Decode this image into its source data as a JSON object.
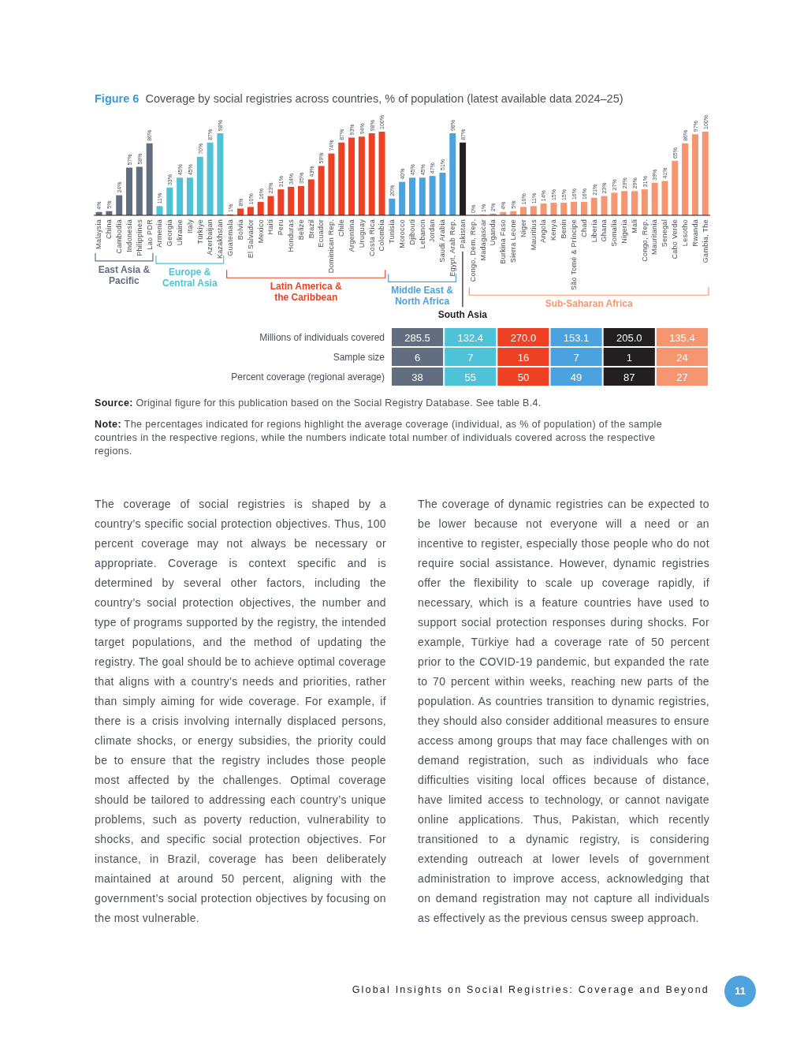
{
  "chart_data": [
    {
      "type": "bar",
      "title": "Figure 6",
      "subtitle": "Coverage by social registries across countries, % of population (latest available data 2024–25)",
      "tick_labels": "x",
      "categories": [
        "Malaysia",
        "China",
        "Cambodia",
        "Indonesia",
        "Philippines",
        "Lao PDR",
        "Armenia",
        "Georgia",
        "Ukraine",
        "Italy",
        "Türkiye",
        "Azerbaijan",
        "Kazakhstan",
        "Guatemala",
        "Bolvia",
        "El Salvador",
        "Mexico",
        "Haiti",
        "Peru",
        "Honduras",
        "Belize",
        "Brazil",
        "Ecuador",
        "Dominican Rep.",
        "Chile",
        "Argentina",
        "Uruguay",
        "Costa Rica",
        "Colombia",
        "Tunisia",
        "Morocco",
        "Djibouti",
        "Lebanon",
        "Jordan",
        "Saudi Arabia",
        "Egypt, Arab Rep.",
        "Pakistan",
        "Congo, Dem. Rep.",
        "Madagascar",
        "Uganda",
        "Burkina Faso",
        "Sierra Leone",
        "Niger",
        "Mauritius",
        "Angola",
        "Kenya",
        "Benin",
        "São Tomé & Príncipe",
        "Chad",
        "Liberia",
        "Ghana",
        "Somalia",
        "Nigeria",
        "Mali",
        "Congo, Rep.",
        "Mauritania",
        "Senegal",
        "Cabo Verde",
        "Lesotho",
        "Rwanda",
        "Gambia, The"
      ],
      "series": [
        {
          "name": "East Asia & Pacific",
          "color": "#626e80",
          "values": [
            4,
            5,
            24,
            57,
            58,
            86,
            null,
            null,
            null,
            null,
            null,
            null,
            null,
            null,
            null,
            null,
            null,
            null,
            null,
            null,
            null,
            null,
            null,
            null,
            null,
            null,
            null,
            null,
            null,
            null,
            null,
            null,
            null,
            null,
            null,
            null,
            null,
            null,
            null,
            null,
            null,
            null,
            null,
            null,
            null,
            null,
            null,
            null,
            null,
            null,
            null,
            null,
            null,
            null,
            null,
            null,
            null,
            null,
            null,
            null,
            null
          ],
          "value_labels": [
            "4%",
            "5%",
            "24%",
            "57%",
            "58%",
            "86%",
            null,
            null,
            null,
            null,
            null,
            null,
            null,
            null,
            null,
            null,
            null,
            null,
            null,
            null,
            null,
            null,
            null,
            null,
            null,
            null,
            null,
            null,
            null,
            null,
            null,
            null,
            null,
            null,
            null,
            null,
            null,
            null,
            null,
            null,
            null,
            null,
            null,
            null,
            null,
            null,
            null,
            null,
            null,
            null,
            null,
            null,
            null,
            null,
            null,
            null,
            null,
            null,
            null,
            null,
            null
          ]
        },
        {
          "name": "Europe & Central Asia",
          "color": "#4ec3d8",
          "values": [
            null,
            null,
            null,
            null,
            null,
            null,
            11,
            33,
            45,
            45,
            70,
            87,
            98,
            null,
            null,
            null,
            null,
            null,
            null,
            null,
            null,
            null,
            null,
            null,
            null,
            null,
            null,
            null,
            null,
            null,
            null,
            null,
            null,
            null,
            null,
            null,
            null,
            null,
            null,
            null,
            null,
            null,
            null,
            null,
            null,
            null,
            null,
            null,
            null,
            null,
            null,
            null,
            null,
            null,
            null,
            null,
            null,
            null,
            null,
            null,
            null
          ],
          "value_labels": [
            null,
            null,
            null,
            null,
            null,
            null,
            "11%",
            "33%",
            "45%",
            "45%",
            "70%",
            "87%",
            "98%",
            null,
            null,
            null,
            null,
            null,
            null,
            null,
            null,
            null,
            null,
            null,
            null,
            null,
            null,
            null,
            null,
            null,
            null,
            null,
            null,
            null,
            null,
            null,
            null,
            null,
            null,
            null,
            null,
            null,
            null,
            null,
            null,
            null,
            null,
            null,
            null,
            null,
            null,
            null,
            null,
            null,
            null,
            null,
            null,
            null,
            null,
            null,
            null
          ]
        },
        {
          "name": "Latin America & the Caribbean",
          "color": "#ee4124",
          "values": [
            null,
            null,
            null,
            null,
            null,
            null,
            null,
            null,
            null,
            null,
            null,
            null,
            null,
            1,
            8,
            10,
            16,
            23,
            31,
            34,
            35,
            43,
            59,
            74,
            87,
            93,
            94,
            98,
            100,
            null,
            null,
            null,
            null,
            null,
            null,
            null,
            null,
            null,
            null,
            null,
            null,
            null,
            null,
            null,
            null,
            null,
            null,
            null,
            null,
            null,
            null,
            null,
            null,
            null,
            null,
            null,
            null,
            null,
            null,
            null,
            null
          ],
          "value_labels": [
            null,
            null,
            null,
            null,
            null,
            null,
            null,
            null,
            null,
            null,
            null,
            null,
            null,
            "1%",
            "8%",
            "10%",
            "16%",
            "23%",
            "31%",
            "34%",
            "35%",
            "43%",
            "59%",
            "74%",
            "87%",
            "93%",
            "94%",
            "98%",
            "100%",
            null,
            null,
            null,
            null,
            null,
            null,
            null,
            null,
            null,
            null,
            null,
            null,
            null,
            null,
            null,
            null,
            null,
            null,
            null,
            null,
            null,
            null,
            null,
            null,
            null,
            null,
            null,
            null,
            null,
            null,
            null,
            null
          ]
        },
        {
          "name": "Middle East & North Africa",
          "color": "#4aa3df",
          "values": [
            null,
            null,
            null,
            null,
            null,
            null,
            null,
            null,
            null,
            null,
            null,
            null,
            null,
            null,
            null,
            null,
            null,
            null,
            null,
            null,
            null,
            null,
            null,
            null,
            null,
            null,
            null,
            null,
            null,
            20,
            40,
            45,
            45,
            47,
            51,
            98,
            null,
            null,
            null,
            null,
            null,
            null,
            null,
            null,
            null,
            null,
            null,
            null,
            null,
            null,
            null,
            null,
            null,
            null,
            null,
            null,
            null,
            null,
            null,
            null,
            null
          ],
          "value_labels": [
            null,
            null,
            null,
            null,
            null,
            null,
            null,
            null,
            null,
            null,
            null,
            null,
            null,
            null,
            null,
            null,
            null,
            null,
            null,
            null,
            null,
            null,
            null,
            null,
            null,
            null,
            null,
            null,
            null,
            "20%",
            "40%",
            "45%",
            "45%",
            "47%",
            "51%",
            "98%",
            null,
            null,
            null,
            null,
            null,
            null,
            null,
            null,
            null,
            null,
            null,
            null,
            null,
            null,
            null,
            null,
            null,
            null,
            null,
            null,
            null,
            null,
            null,
            null,
            null
          ]
        },
        {
          "name": "South Asia",
          "color": "#231f20",
          "values": [
            null,
            null,
            null,
            null,
            null,
            null,
            null,
            null,
            null,
            null,
            null,
            null,
            null,
            null,
            null,
            null,
            null,
            null,
            null,
            null,
            null,
            null,
            null,
            null,
            null,
            null,
            null,
            null,
            null,
            null,
            null,
            null,
            null,
            null,
            null,
            null,
            87,
            null,
            null,
            null,
            null,
            null,
            null,
            null,
            null,
            null,
            null,
            null,
            null,
            null,
            null,
            null,
            null,
            null,
            null,
            null,
            null,
            null,
            null,
            null,
            null
          ],
          "value_labels": [
            null,
            null,
            null,
            null,
            null,
            null,
            null,
            null,
            null,
            null,
            null,
            null,
            null,
            null,
            null,
            null,
            null,
            null,
            null,
            null,
            null,
            null,
            null,
            null,
            null,
            null,
            null,
            null,
            null,
            null,
            null,
            null,
            null,
            null,
            null,
            null,
            "87%",
            null,
            null,
            null,
            null,
            null,
            null,
            null,
            null,
            null,
            null,
            null,
            null,
            null,
            null,
            null,
            null,
            null,
            null,
            null,
            null,
            null,
            null,
            null,
            null
          ]
        },
        {
          "name": "Sub-Saharan Africa",
          "color": "#f59670",
          "values": [
            null,
            null,
            null,
            null,
            null,
            null,
            null,
            null,
            null,
            null,
            null,
            null,
            null,
            null,
            null,
            null,
            null,
            null,
            null,
            null,
            null,
            null,
            null,
            null,
            null,
            null,
            null,
            null,
            null,
            null,
            null,
            null,
            null,
            null,
            null,
            null,
            null,
            0,
            1,
            2,
            4,
            5,
            10,
            11,
            14,
            15,
            15,
            16,
            16,
            21,
            23,
            27,
            29,
            29,
            31,
            39,
            41,
            65,
            86,
            97,
            100
          ],
          "value_labels": [
            null,
            null,
            null,
            null,
            null,
            null,
            null,
            null,
            null,
            null,
            null,
            null,
            null,
            null,
            null,
            null,
            null,
            null,
            null,
            null,
            null,
            null,
            null,
            null,
            null,
            null,
            null,
            null,
            null,
            null,
            null,
            null,
            null,
            null,
            null,
            null,
            null,
            "0%",
            "1%",
            "2%",
            "4%",
            "5%",
            "10%",
            "11%",
            "14%",
            "15%",
            "15%",
            "16%",
            "16%",
            "21%",
            "23%",
            "27%",
            "29%",
            "29%",
            "31%",
            "39%",
            "41%",
            "65%",
            "86%",
            "97%",
            "100%"
          ]
        }
      ]
    },
    {
      "type": "heatmap",
      "tick_labels": "y",
      "categories": [
        null,
        null,
        null,
        null,
        null,
        null
      ],
      "y_categories": [
        "Millions of individuals covered",
        "Sample size",
        "Percent coverage (regional average)"
      ],
      "cells": [
        [
          285.5,
          132.4,
          270.0,
          153.1,
          205.0,
          135.4
        ],
        [
          6,
          7,
          16,
          7,
          1,
          24
        ],
        [
          38,
          55,
          50,
          49,
          87,
          27
        ]
      ],
      "cell_labels": [
        [
          "285.5",
          "132.4",
          "270.0",
          "153.1",
          "205.0",
          "135.4"
        ],
        [
          "6",
          "7",
          "16",
          "7",
          "1",
          "24"
        ],
        [
          "38",
          "55",
          "50",
          "49",
          "87",
          "27"
        ]
      ],
      "colors": [
        "#626e80",
        "#4ec3d8",
        "#ee4124",
        "#4aa3df",
        "#231f20",
        "#f59670"
      ],
      "annotations": [
        "Source: Original figure for this publication based on the Social Registry Database. See table B.4.",
        "Note: The percentages indicated for regions highlight the average coverage (individual, as % of population) of the sample countries in the respective regions, while the numbers indicate total number of individuals covered across the respective regions.",
        "The coverage of social registries is shaped by a country’s specific social protection objectives. Thus, 100 percent coverage may not always be necessary or appropriate. Coverage is context specific and is determined by several other factors, including the country’s social protection objectives, the number and type of programs supported by the registry, the intended target populations, and the method of updating the registry. The goal should be to achieve optimal coverage that aligns with a country’s needs and priorities, rather than simply aiming for wide coverage. For example, if there is a crisis involving internally displaced persons, climate shocks, or energy subsidies, the priority could be to ensure that the registry includes those people most affected by the challenges. Optimal coverage should be tailored to addressing each country’s unique problems, such as poverty reduction, vulnerability to shocks, and specific social protection objectives. For instance, in Brazil, coverage has been deliberately maintained at around 50 percent, aligning with the government’s social protection objectives by focusing on the most vulnerable.",
        "The coverage of dynamic registries can be expected to be lower because not everyone will a need or an incentive to register, especially those people who do not require social assistance. However, dynamic registries offer the flexibility to scale up coverage rapidly, if necessary, which is a feature countries have used to support social protection responses during shocks. For example, Türkiye had a coverage rate of 50 percent prior to the COVID-19 pandemic, but expanded the rate to 70 percent within weeks, reaching new parts of the population. As countries transition to dynamic registries, they should also consider additional measures to ensure access among groups that may face challenges with on demand registration, such as individuals who face difficulties visiting local offices because of distance, have limited access to technology, or cannot navigate online applications. Thus, Pakistan, which recently transitioned to a dynamic registry, is considering extending outreach at lower levels of government administration to improve access, acknowledging that on demand registration may not capture all individuals as effectively as the previous census sweep approach.",
        "Global Insights on Social Registries: Coverage and Beyond",
        "11"
      ]
    }
  ]
}
